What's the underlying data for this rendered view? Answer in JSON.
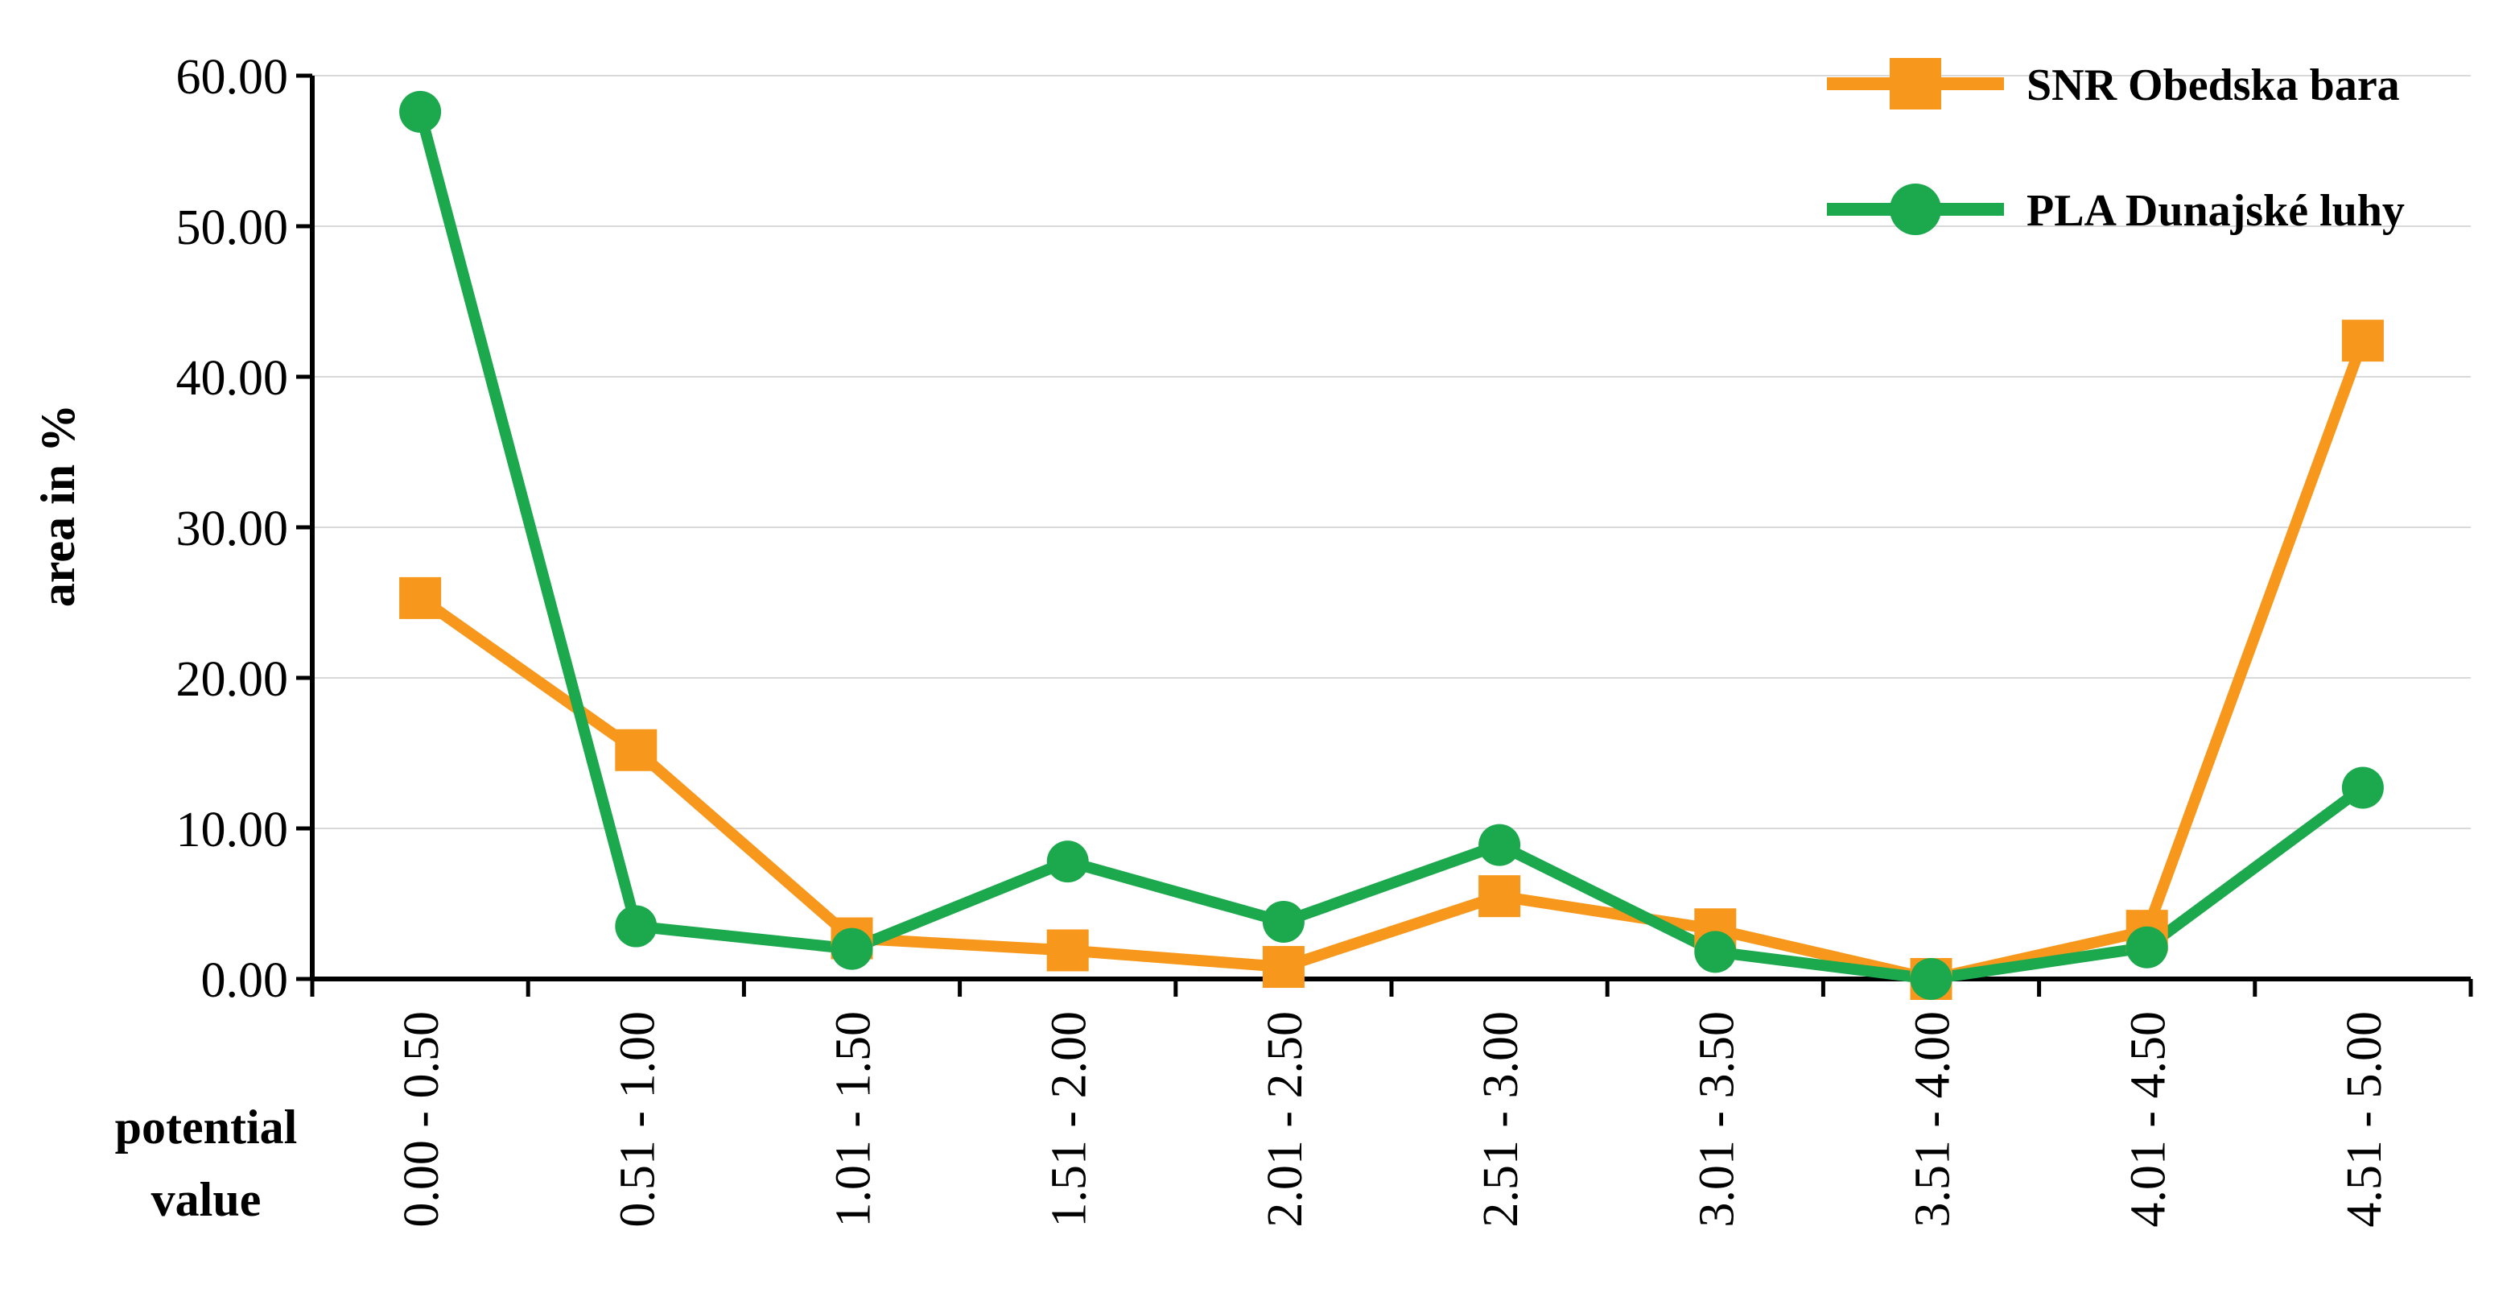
{
  "chart_data": {
    "type": "line",
    "categories": [
      "0.00 - 0.50",
      "0.51 - 1.00",
      "1.01 - 1.50",
      "1.51 - 2.00",
      "2.01 - 2.50",
      "2.51 - 3.00",
      "3.01 - 3.50",
      "3.51 - 4.00",
      "4.01 - 4.50",
      "4.51 - 5.00"
    ],
    "series": [
      {
        "name": "SNR Obedska bara",
        "color": "#F7981D",
        "marker": "square",
        "values": [
          25.3,
          15.2,
          2.7,
          1.9,
          0.8,
          5.5,
          3.3,
          0.0,
          3.2,
          42.4
        ]
      },
      {
        "name": "PLA Dunajské luhy",
        "color": "#1CA84C",
        "marker": "circle",
        "values": [
          57.6,
          3.5,
          2.0,
          7.8,
          3.8,
          8.9,
          1.8,
          0.0,
          2.1,
          12.7
        ]
      }
    ],
    "yticks": [
      "0.00",
      "10.00",
      "20.00",
      "30.00",
      "40.00",
      "50.00",
      "60.00"
    ],
    "ylim": [
      0,
      60
    ],
    "ylabel": "area in %",
    "xlabel_line1": "potential",
    "xlabel_line2": "value",
    "grid": true,
    "legend_position": "top-right"
  }
}
